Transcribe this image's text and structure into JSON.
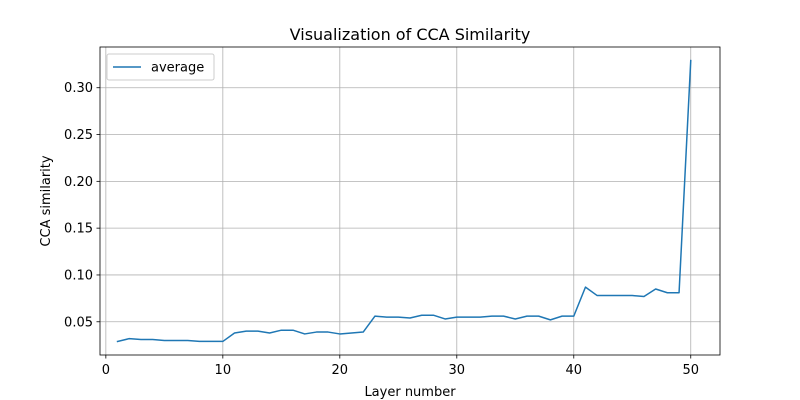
{
  "chart_data": {
    "type": "line",
    "title": "Visualization of CCA Similarity",
    "xlabel": "Layer number",
    "ylabel": "CCA similarity",
    "xlim": [
      -0.5,
      52.5
    ],
    "ylim": [
      0.0145,
      0.3435
    ],
    "xticks": [
      0,
      10,
      20,
      30,
      40,
      50
    ],
    "yticks": [
      0.05,
      0.1,
      0.15,
      0.2,
      0.25,
      0.3
    ],
    "xtick_labels": [
      "0",
      "10",
      "20",
      "30",
      "40",
      "50"
    ],
    "ytick_labels": [
      "0.05",
      "0.10",
      "0.15",
      "0.20",
      "0.25",
      "0.30"
    ],
    "grid": true,
    "legend_position": "top-left",
    "x": [
      1,
      2,
      3,
      4,
      5,
      6,
      7,
      8,
      9,
      10,
      11,
      12,
      13,
      14,
      15,
      16,
      17,
      18,
      19,
      20,
      21,
      22,
      23,
      24,
      25,
      26,
      27,
      28,
      29,
      30,
      31,
      32,
      33,
      34,
      35,
      36,
      37,
      38,
      39,
      40,
      41,
      42,
      43,
      44,
      45,
      46,
      47,
      48,
      49,
      50
    ],
    "series": [
      {
        "name": "average",
        "color": "#1f77b4",
        "values": [
          0.029,
          0.032,
          0.031,
          0.031,
          0.03,
          0.03,
          0.03,
          0.029,
          0.029,
          0.029,
          0.038,
          0.04,
          0.04,
          0.038,
          0.041,
          0.041,
          0.037,
          0.039,
          0.039,
          0.037,
          0.038,
          0.039,
          0.056,
          0.055,
          0.055,
          0.054,
          0.057,
          0.057,
          0.053,
          0.055,
          0.055,
          0.055,
          0.056,
          0.056,
          0.053,
          0.056,
          0.056,
          0.052,
          0.056,
          0.056,
          0.087,
          0.078,
          0.078,
          0.078,
          0.078,
          0.077,
          0.085,
          0.081,
          0.081,
          0.329
        ]
      }
    ]
  }
}
